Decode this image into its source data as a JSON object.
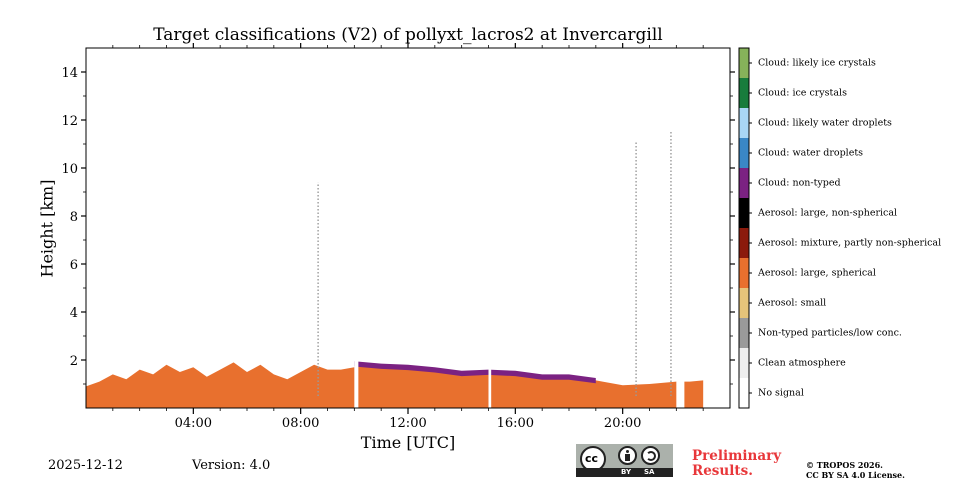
{
  "chart_data": {
    "type": "heatmap",
    "title": "Target classifications (V2) of pollyxt_lacros2 at Invercargill",
    "xlabel": "Time [UTC]",
    "ylabel": "Height [km]",
    "xlim": [
      0,
      24
    ],
    "ylim": [
      0,
      15
    ],
    "x_ticks": [
      {
        "value": 4,
        "label": "04:00"
      },
      {
        "value": 8,
        "label": "08:00"
      },
      {
        "value": 12,
        "label": "12:00"
      },
      {
        "value": 16,
        "label": "16:00"
      },
      {
        "value": 20,
        "label": "20:00"
      }
    ],
    "y_ticks": [
      {
        "value": 2,
        "label": "2"
      },
      {
        "value": 4,
        "label": "4"
      },
      {
        "value": 6,
        "label": "6"
      },
      {
        "value": 8,
        "label": "8"
      },
      {
        "value": 10,
        "label": "10"
      },
      {
        "value": 12,
        "label": "12"
      },
      {
        "value": 14,
        "label": "14"
      }
    ],
    "colorbar_classes": [
      {
        "label": "No signal",
        "color": "#ffffff"
      },
      {
        "label": "Clean atmosphere",
        "color": "#eeeeee"
      },
      {
        "label": "Non-typed particles/low conc.",
        "color": "#9a9a9a"
      },
      {
        "label": "Aerosol: small",
        "color": "#e6c47a"
      },
      {
        "label": "Aerosol: large, spherical",
        "color": "#e8702e"
      },
      {
        "label": "Aerosol: mixture, partly non-spherical",
        "color": "#8b1a0c"
      },
      {
        "label": "Aerosol: large, non-spherical",
        "color": "#000000"
      },
      {
        "label": "Cloud: non-typed",
        "color": "#7b2282"
      },
      {
        "label": "Cloud: water droplets",
        "color": "#3a87c6"
      },
      {
        "label": "Cloud: likely water droplets",
        "color": "#a9d6f5"
      },
      {
        "label": "Cloud: ice crystals",
        "color": "#187c3c"
      },
      {
        "label": "Cloud: likely ice crystals",
        "color": "#86b25a"
      }
    ],
    "aerosol_layer_top_km": [
      {
        "x": 0.0,
        "y": 0.9
      },
      {
        "x": 0.5,
        "y": 1.1
      },
      {
        "x": 1.0,
        "y": 1.4
      },
      {
        "x": 1.5,
        "y": 1.2
      },
      {
        "x": 2.0,
        "y": 1.6
      },
      {
        "x": 2.5,
        "y": 1.4
      },
      {
        "x": 3.0,
        "y": 1.8
      },
      {
        "x": 3.5,
        "y": 1.5
      },
      {
        "x": 4.0,
        "y": 1.7
      },
      {
        "x": 4.5,
        "y": 1.3
      },
      {
        "x": 5.0,
        "y": 1.6
      },
      {
        "x": 5.5,
        "y": 1.9
      },
      {
        "x": 6.0,
        "y": 1.5
      },
      {
        "x": 6.5,
        "y": 1.8
      },
      {
        "x": 7.0,
        "y": 1.4
      },
      {
        "x": 7.5,
        "y": 1.2
      },
      {
        "x": 8.0,
        "y": 1.5
      },
      {
        "x": 8.5,
        "y": 1.8
      },
      {
        "x": 9.0,
        "y": 1.6
      },
      {
        "x": 9.5,
        "y": 1.6
      },
      {
        "x": 10.0,
        "y": 1.7
      },
      {
        "x": 10.3,
        "y": 1.8
      },
      {
        "x": 11.0,
        "y": 1.7
      },
      {
        "x": 12.0,
        "y": 1.65
      },
      {
        "x": 13.0,
        "y": 1.55
      },
      {
        "x": 14.0,
        "y": 1.4
      },
      {
        "x": 15.0,
        "y": 1.45
      },
      {
        "x": 16.0,
        "y": 1.4
      },
      {
        "x": 17.0,
        "y": 1.25
      },
      {
        "x": 18.0,
        "y": 1.3
      },
      {
        "x": 19.0,
        "y": 1.15
      },
      {
        "x": 20.0,
        "y": 0.95
      },
      {
        "x": 21.0,
        "y": 1.0
      },
      {
        "x": 22.0,
        "y": 1.1
      },
      {
        "x": 22.5,
        "y": 1.1
      },
      {
        "x": 23.0,
        "y": 1.15
      }
    ],
    "cloud_top_km": [
      {
        "x": 10.0,
        "y": 1.95
      },
      {
        "x": 11.0,
        "y": 1.85
      },
      {
        "x": 12.0,
        "y": 1.8
      },
      {
        "x": 13.0,
        "y": 1.7
      },
      {
        "x": 14.0,
        "y": 1.55
      },
      {
        "x": 15.0,
        "y": 1.6
      },
      {
        "x": 16.0,
        "y": 1.55
      },
      {
        "x": 17.0,
        "y": 1.4
      },
      {
        "x": 18.0,
        "y": 1.4
      },
      {
        "x": 19.0,
        "y": 1.25
      }
    ],
    "data_gaps_hours": [
      [
        10.0,
        10.15
      ],
      [
        15.0,
        15.1
      ],
      [
        22.0,
        22.3
      ]
    ],
    "spike_columns": [
      {
        "x": 8.65,
        "ymax": 9.4
      },
      {
        "x": 20.5,
        "ymax": 11.1
      },
      {
        "x": 21.8,
        "ymax": 11.5
      }
    ]
  },
  "footer": {
    "date": "2025-12-12",
    "version": "Version: 4.0",
    "preliminary_line1": "Preliminary",
    "preliminary_line2": "Results.",
    "copyright_line1": "© TROPOS 2026.",
    "copyright_line2": "CC BY SA 4.0 License.",
    "license_badge": {
      "cc": "cc",
      "by": "BY",
      "sa": "SA"
    }
  }
}
